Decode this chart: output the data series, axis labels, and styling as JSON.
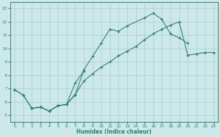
{
  "xlabel": "Humidex (Indice chaleur)",
  "xlim": [
    -0.5,
    23.5
  ],
  "ylim": [
    4.5,
    13.5
  ],
  "xticks": [
    0,
    1,
    2,
    3,
    4,
    5,
    6,
    7,
    8,
    9,
    10,
    11,
    12,
    13,
    14,
    15,
    16,
    17,
    18,
    19,
    20,
    21,
    22,
    23
  ],
  "yticks": [
    5,
    6,
    7,
    8,
    9,
    10,
    11,
    12,
    13
  ],
  "bg_color": "#cce8e8",
  "line_color": "#2e7d72",
  "grid_color": "#a8cccc",
  "curve1_x": [
    0,
    1,
    2,
    3,
    4,
    5,
    6,
    7,
    8,
    9,
    10,
    11,
    12,
    13,
    15,
    16,
    17,
    18,
    19,
    20
  ],
  "curve1_y": [
    6.9,
    6.5,
    5.5,
    5.6,
    5.3,
    5.7,
    5.8,
    6.5,
    8.4,
    9.4,
    10.4,
    11.45,
    11.3,
    11.7,
    12.3,
    12.65,
    12.2,
    11.1,
    10.8,
    10.4
  ],
  "curve2_x": [
    2,
    3,
    4,
    5,
    6,
    7,
    8,
    9,
    10,
    11,
    12,
    13,
    14,
    15,
    16,
    17,
    18,
    19,
    20,
    21,
    22,
    23
  ],
  "curve2_y": [
    5.5,
    5.6,
    5.3,
    5.7,
    5.8,
    6.55,
    7.55,
    8.1,
    8.6,
    9.0,
    9.45,
    9.8,
    10.15,
    10.65,
    11.1,
    11.45,
    11.75,
    12.0,
    9.5,
    9.6,
    9.7,
    9.7
  ],
  "curve3_x": [
    0,
    1,
    2,
    3,
    4,
    5,
    6,
    7,
    8
  ],
  "curve3_y": [
    6.9,
    6.5,
    5.5,
    5.6,
    5.3,
    5.7,
    5.8,
    7.4,
    8.3
  ]
}
